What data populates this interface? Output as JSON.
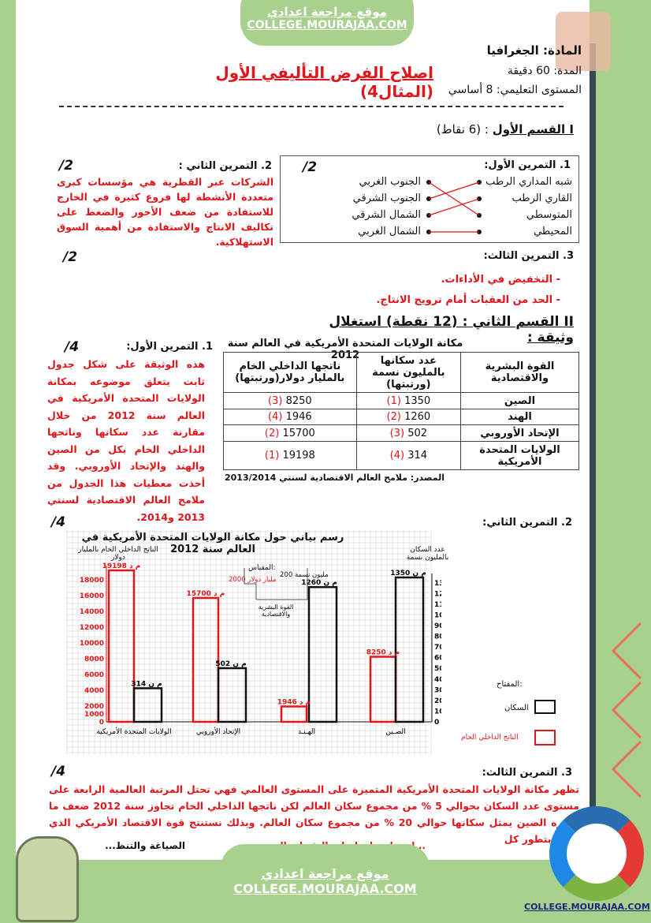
{
  "banner": {
    "arabic": "موقع مراجعة اعدادي",
    "latin": "COLLEGE.MOURAJAA.COM"
  },
  "header": {
    "subject": "المادة: الجغرافيا",
    "duration": "المدة: 60 دقيقة",
    "level": "المستوى التعليمي: 8 أساسي",
    "title_part1": "اصلاح الفرض التأليفي الأول",
    "title_part2": "(المثال4)"
  },
  "section1": {
    "title": "I القسم الأول",
    "points": ": (6 نقاط)",
    "ex1": {
      "label": "1. التمرين الأول:",
      "score": "/2",
      "left": [
        "شبه المداري الرطب",
        "القاري الرطب",
        "المتوسطي",
        "المحيطي"
      ],
      "right": [
        "الجنوب الغربي",
        "الجنوب الشرقي",
        "الشمال الشرقي",
        "الشمال الغربي"
      ]
    },
    "ex2": {
      "label": "2. التمرين الثاني :",
      "score": "/2",
      "answer": "الشركات عبر القطرية هي مؤسسات كبرى متعددة الأنشطة لها فروع كثيرة في الخارج للاستفادة من ضعف الأجور والضغط على تكاليف الانتاج والاستفادة من أهمية السوق الاستهلاكية."
    },
    "ex3": {
      "label": "3. التمرين الثالث:",
      "score": "/2",
      "items": [
        "- التخفيض في الأداءات.",
        "- الحد من العقبات أمام ترويج الانتاج."
      ]
    }
  },
  "section2": {
    "title": "II القسم الثاني",
    "points": ": (12 نقطة) استغلال وثيقة :",
    "ex1": {
      "label": "1. التمرين الأول:",
      "score": "/4",
      "answer": "هذه الوثيقة على شكل جدول ثابت يتعلق موضوعه بمكانة الولايات المتحدة الأمريكية في العالم سنة 2012 من خلال مقارنة عدد سكانها وناتجها الداخلي الخام بكل من الصين والهند والإتحاد الأوروبي. وقد أخذت معطيات هذا الجدول من ملامح العالم الاقتصادية لسنتي 2013 و2014."
    },
    "table": {
      "caption": "مكانة الولايات المتحدة الأمريكية في العالم سنة 2012",
      "headers": [
        "القوة البشرية والاقتصادية",
        "عدد سكانها بالمليون نسمة (ورتبتها)",
        "ناتجها الداخلي الخام بالمليار دولار(ورتبتها)"
      ],
      "rows": [
        {
          "name": "الصين",
          "pop": "1350",
          "pop_rank": "(1)",
          "gdp": "8250",
          "gdp_rank": "(3)"
        },
        {
          "name": "الهند",
          "pop": "1260",
          "pop_rank": "(2)",
          "gdp": "1946",
          "gdp_rank": "(4)"
        },
        {
          "name": "الإتحاد الأوروبي",
          "pop": "502",
          "pop_rank": "(3)",
          "gdp": "15700",
          "gdp_rank": "(2)"
        },
        {
          "name": "الولايات المتحدة الأمريكية",
          "pop": "314",
          "pop_rank": "(4)",
          "gdp": "19198",
          "gdp_rank": "(1)"
        }
      ],
      "source": "المصدر: ملامح العالم الاقتصادية لسنتي 2013/2014"
    },
    "ex2": {
      "label": "2. التمرين الثاني:",
      "score": "/4"
    },
    "ex3": {
      "label": "3. التمرين الثالث:",
      "score": "/4",
      "answer": "تظهر مكانة الولايات المتحدة الأمريكية المتميزة على المستوى العالمي فهي تحتل المرتبة العالمية الرابعة على مستوى عدد السكان بحوالي 5 % من مجموع سكان العالم لكن ناتجها الداخلي الخام تجاوز سنة 2012 ضعف ما توفره الصين يمثل سكانها حوالي 20 % من مجموع سكان العالم. وبذلك نستنتج قوة الاقتصاد الأمريكي الذي يتميز بتطور كل",
      "last_line": "...اته واعتمادها على التقنيات ال...",
      "footer_note": "الصياغة والتنظ..."
    }
  },
  "chart_data": {
    "type": "bar",
    "title": "رسم بياني حول مكانة الولايات المتحدة الأمريكية في العالم سنة 2012",
    "categories": [
      "الولايات المتحدة الأمريكية",
      "الإتحاد الأوروبي",
      "الهـنـد",
      "الصـين"
    ],
    "series": [
      {
        "name": "الناتج الداخلي الخام",
        "values": [
          19198,
          15700,
          1946,
          8250
        ],
        "labels": [
          "19198 م د",
          "15700 م د",
          "1946 م د",
          "8250 م د"
        ],
        "color": "#e0161b",
        "axis": "left"
      },
      {
        "name": "السكان",
        "values": [
          314,
          502,
          1260,
          1350
        ],
        "labels": [
          "314 م ن",
          "502 م ن",
          "1260 م ن",
          "1350 م ن"
        ],
        "color": "#111111",
        "axis": "right"
      }
    ],
    "ylabel_left": "الناتج الداخلي الخام بالمليار دولار",
    "ylabel_right": "عدد السكان بالمليون نسمة",
    "yticks_left": [
      0,
      1000,
      2000,
      4000,
      6000,
      8000,
      10000,
      12000,
      14000,
      16000,
      18000
    ],
    "yticks_right": [
      0,
      100,
      200,
      300,
      400,
      500,
      600,
      700,
      800,
      900,
      1000,
      1100,
      1200,
      1300
    ],
    "ylim_left": [
      0,
      19500
    ],
    "ylim_right": [
      0,
      1400
    ],
    "scale": {
      "title": "المقياس:",
      "gdp": "2000 مليار دولار",
      "pop": "200 مليون نسمة",
      "axis": "القوة البشرية والاقتصادية"
    },
    "legend": {
      "title": "المفتاح:",
      "items": [
        "السكان",
        "الناتج الداخلي الخام"
      ]
    },
    "grid": true
  },
  "logo": {
    "text": "COLLEGE.MOURAJAA.COM"
  },
  "footer": {
    "arabic": "موقع مراجعة اعدادي",
    "latin": "COLLEGE.MOURAJAA.COM"
  },
  "colors": {
    "accent_red": "#e0161b",
    "frame_green": "#a9d18e",
    "bar_dark": "#37474f"
  }
}
